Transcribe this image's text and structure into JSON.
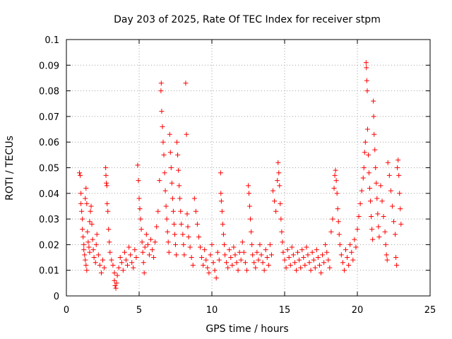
{
  "chart_data": {
    "type": "scatter",
    "title": "Day 203 of 2025, Rate Of TEC Index for receiver stpm",
    "xlabel": "GPS time / hours",
    "ylabel": "ROTI / TECUs",
    "xlim": [
      0,
      25
    ],
    "ylim": [
      0,
      0.1
    ],
    "xticks": [
      "0",
      "5",
      "10",
      "15",
      "20",
      "25"
    ],
    "yticks": [
      "0",
      "0.01",
      "0.02",
      "0.03",
      "0.04",
      "0.05",
      "0.06",
      "0.07",
      "0.08",
      "0.09",
      "0.1"
    ],
    "grid": true,
    "marker": "+",
    "color": "#ff0000",
    "series": [
      {
        "points": [
          [
            0.9,
            0.048
          ],
          [
            0.95,
            0.047
          ],
          [
            1.0,
            0.04
          ],
          [
            1.0,
            0.036
          ],
          [
            1.05,
            0.033
          ],
          [
            1.1,
            0.03
          ],
          [
            1.1,
            0.026
          ],
          [
            1.15,
            0.023
          ],
          [
            1.2,
            0.02
          ],
          [
            1.2,
            0.018
          ],
          [
            1.25,
            0.016
          ],
          [
            1.3,
            0.014
          ],
          [
            1.35,
            0.012
          ],
          [
            1.4,
            0.01
          ],
          [
            1.3,
            0.038
          ],
          [
            1.35,
            0.042
          ],
          [
            1.4,
            0.036
          ],
          [
            1.45,
            0.025
          ],
          [
            1.5,
            0.021
          ],
          [
            1.55,
            0.019
          ],
          [
            1.6,
            0.017
          ],
          [
            1.6,
            0.029
          ],
          [
            1.65,
            0.033
          ],
          [
            1.7,
            0.035
          ],
          [
            1.75,
            0.028
          ],
          [
            1.8,
            0.022
          ],
          [
            1.85,
            0.018
          ],
          [
            1.9,
            0.015
          ],
          [
            2.0,
            0.013
          ],
          [
            2.05,
            0.02
          ],
          [
            2.1,
            0.024
          ],
          [
            2.2,
            0.016
          ],
          [
            2.3,
            0.012
          ],
          [
            2.4,
            0.009
          ],
          [
            2.5,
            0.014
          ],
          [
            2.6,
            0.011
          ],
          [
            2.7,
            0.05
          ],
          [
            2.72,
            0.047
          ],
          [
            2.75,
            0.044
          ],
          [
            2.78,
            0.043
          ],
          [
            2.8,
            0.036
          ],
          [
            2.85,
            0.033
          ],
          [
            2.9,
            0.026
          ],
          [
            2.95,
            0.021
          ],
          [
            3.0,
            0.017
          ],
          [
            3.1,
            0.014
          ],
          [
            3.2,
            0.012
          ],
          [
            3.3,
            0.009
          ],
          [
            3.3,
            0.006
          ],
          [
            3.35,
            0.004
          ],
          [
            3.4,
            0.003
          ],
          [
            3.45,
            0.005
          ],
          [
            3.5,
            0.008
          ],
          [
            3.6,
            0.011
          ],
          [
            3.7,
            0.015
          ],
          [
            3.8,
            0.013
          ],
          [
            3.9,
            0.01
          ],
          [
            4.0,
            0.017
          ],
          [
            4.1,
            0.014
          ],
          [
            4.2,
            0.012
          ],
          [
            4.3,
            0.019
          ],
          [
            4.4,
            0.016
          ],
          [
            4.5,
            0.013
          ],
          [
            4.6,
            0.011
          ],
          [
            4.7,
            0.018
          ],
          [
            4.8,
            0.015
          ],
          [
            4.9,
            0.051
          ],
          [
            4.95,
            0.045
          ],
          [
            5.0,
            0.038
          ],
          [
            5.05,
            0.034
          ],
          [
            5.1,
            0.03
          ],
          [
            5.15,
            0.026
          ],
          [
            5.2,
            0.021
          ],
          [
            5.25,
            0.017
          ],
          [
            5.3,
            0.013
          ],
          [
            5.35,
            0.009
          ],
          [
            5.4,
            0.019
          ],
          [
            5.5,
            0.024
          ],
          [
            5.6,
            0.02
          ],
          [
            5.7,
            0.016
          ],
          [
            5.8,
            0.022
          ],
          [
            5.9,
            0.018
          ],
          [
            6.0,
            0.015
          ],
          [
            6.1,
            0.021
          ],
          [
            6.2,
            0.027
          ],
          [
            6.3,
            0.033
          ],
          [
            6.4,
            0.045
          ],
          [
            6.5,
            0.08
          ],
          [
            6.52,
            0.083
          ],
          [
            6.55,
            0.072
          ],
          [
            6.6,
            0.066
          ],
          [
            6.65,
            0.06
          ],
          [
            6.7,
            0.055
          ],
          [
            6.75,
            0.048
          ],
          [
            6.8,
            0.041
          ],
          [
            6.85,
            0.035
          ],
          [
            6.9,
            0.03
          ],
          [
            6.95,
            0.025
          ],
          [
            7.0,
            0.021
          ],
          [
            7.05,
            0.017
          ],
          [
            7.1,
            0.063
          ],
          [
            7.15,
            0.056
          ],
          [
            7.2,
            0.05
          ],
          [
            7.25,
            0.044
          ],
          [
            7.3,
            0.038
          ],
          [
            7.35,
            0.033
          ],
          [
            7.4,
            0.028
          ],
          [
            7.45,
            0.024
          ],
          [
            7.5,
            0.02
          ],
          [
            7.55,
            0.016
          ],
          [
            7.6,
            0.06
          ],
          [
            7.65,
            0.055
          ],
          [
            7.7,
            0.049
          ],
          [
            7.75,
            0.043
          ],
          [
            7.8,
            0.038
          ],
          [
            7.85,
            0.033
          ],
          [
            7.9,
            0.028
          ],
          [
            8.0,
            0.024
          ],
          [
            8.05,
            0.02
          ],
          [
            8.1,
            0.016
          ],
          [
            8.2,
            0.083
          ],
          [
            8.25,
            0.063
          ],
          [
            8.3,
            0.032
          ],
          [
            8.35,
            0.027
          ],
          [
            8.4,
            0.023
          ],
          [
            8.5,
            0.019
          ],
          [
            8.6,
            0.015
          ],
          [
            8.7,
            0.012
          ],
          [
            8.8,
            0.038
          ],
          [
            8.9,
            0.033
          ],
          [
            9.0,
            0.028
          ],
          [
            9.1,
            0.023
          ],
          [
            9.2,
            0.019
          ],
          [
            9.3,
            0.015
          ],
          [
            9.4,
            0.012
          ],
          [
            9.5,
            0.018
          ],
          [
            9.6,
            0.014
          ],
          [
            9.7,
            0.011
          ],
          [
            9.8,
            0.009
          ],
          [
            9.9,
            0.016
          ],
          [
            10.0,
            0.02
          ],
          [
            10.1,
            0.013
          ],
          [
            10.2,
            0.01
          ],
          [
            10.3,
            0.007
          ],
          [
            10.4,
            0.017
          ],
          [
            10.5,
            0.014
          ],
          [
            10.6,
            0.048
          ],
          [
            10.62,
            0.04
          ],
          [
            10.65,
            0.037
          ],
          [
            10.7,
            0.033
          ],
          [
            10.75,
            0.028
          ],
          [
            10.8,
            0.024
          ],
          [
            10.85,
            0.02
          ],
          [
            10.9,
            0.016
          ],
          [
            11.0,
            0.013
          ],
          [
            11.1,
            0.011
          ],
          [
            11.2,
            0.018
          ],
          [
            11.3,
            0.015
          ],
          [
            11.4,
            0.012
          ],
          [
            11.5,
            0.019
          ],
          [
            11.6,
            0.016
          ],
          [
            11.7,
            0.013
          ],
          [
            11.8,
            0.01
          ],
          [
            11.9,
            0.017
          ],
          [
            12.0,
            0.014
          ],
          [
            12.1,
            0.021
          ],
          [
            12.2,
            0.017
          ],
          [
            12.3,
            0.013
          ],
          [
            12.4,
            0.01
          ],
          [
            12.5,
            0.043
          ],
          [
            12.55,
            0.04
          ],
          [
            12.6,
            0.035
          ],
          [
            12.65,
            0.03
          ],
          [
            12.7,
            0.025
          ],
          [
            12.75,
            0.02
          ],
          [
            12.8,
            0.016
          ],
          [
            12.9,
            0.013
          ],
          [
            13.0,
            0.011
          ],
          [
            13.1,
            0.017
          ],
          [
            13.2,
            0.014
          ],
          [
            13.3,
            0.02
          ],
          [
            13.4,
            0.016
          ],
          [
            13.5,
            0.013
          ],
          [
            13.6,
            0.01
          ],
          [
            13.7,
            0.018
          ],
          [
            13.8,
            0.015
          ],
          [
            13.9,
            0.012
          ],
          [
            14.0,
            0.02
          ],
          [
            14.1,
            0.016
          ],
          [
            14.2,
            0.041
          ],
          [
            14.3,
            0.037
          ],
          [
            14.4,
            0.033
          ],
          [
            14.5,
            0.045
          ],
          [
            14.55,
            0.052
          ],
          [
            14.6,
            0.048
          ],
          [
            14.65,
            0.043
          ],
          [
            14.7,
            0.036
          ],
          [
            14.75,
            0.03
          ],
          [
            14.8,
            0.025
          ],
          [
            14.85,
            0.021
          ],
          [
            14.9,
            0.017
          ],
          [
            15.0,
            0.014
          ],
          [
            15.1,
            0.011
          ],
          [
            15.2,
            0.018
          ],
          [
            15.3,
            0.015
          ],
          [
            15.4,
            0.012
          ],
          [
            15.5,
            0.019
          ],
          [
            15.6,
            0.016
          ],
          [
            15.7,
            0.013
          ],
          [
            15.8,
            0.01
          ],
          [
            15.9,
            0.017
          ],
          [
            16.0,
            0.014
          ],
          [
            16.1,
            0.011
          ],
          [
            16.2,
            0.018
          ],
          [
            16.3,
            0.015
          ],
          [
            16.4,
            0.012
          ],
          [
            16.5,
            0.019
          ],
          [
            16.6,
            0.016
          ],
          [
            16.7,
            0.013
          ],
          [
            16.8,
            0.01
          ],
          [
            16.9,
            0.017
          ],
          [
            17.0,
            0.014
          ],
          [
            17.1,
            0.011
          ],
          [
            17.2,
            0.018
          ],
          [
            17.3,
            0.015
          ],
          [
            17.4,
            0.012
          ],
          [
            17.5,
            0.009
          ],
          [
            17.6,
            0.016
          ],
          [
            17.7,
            0.013
          ],
          [
            17.8,
            0.02
          ],
          [
            17.9,
            0.017
          ],
          [
            18.0,
            0.014
          ],
          [
            18.1,
            0.011
          ],
          [
            18.2,
            0.025
          ],
          [
            18.3,
            0.03
          ],
          [
            18.4,
            0.042
          ],
          [
            18.45,
            0.047
          ],
          [
            18.5,
            0.049
          ],
          [
            18.55,
            0.045
          ],
          [
            18.6,
            0.04
          ],
          [
            18.65,
            0.034
          ],
          [
            18.7,
            0.029
          ],
          [
            18.75,
            0.024
          ],
          [
            18.8,
            0.02
          ],
          [
            18.9,
            0.016
          ],
          [
            19.0,
            0.013
          ],
          [
            19.1,
            0.01
          ],
          [
            19.2,
            0.018
          ],
          [
            19.3,
            0.015
          ],
          [
            19.4,
            0.012
          ],
          [
            19.5,
            0.02
          ],
          [
            19.6,
            0.017
          ],
          [
            19.7,
            0.014
          ],
          [
            19.8,
            0.022
          ],
          [
            19.9,
            0.019
          ],
          [
            20.0,
            0.026
          ],
          [
            20.1,
            0.031
          ],
          [
            20.2,
            0.036
          ],
          [
            20.3,
            0.041
          ],
          [
            20.4,
            0.046
          ],
          [
            20.45,
            0.05
          ],
          [
            20.5,
            0.056
          ],
          [
            20.55,
            0.06
          ],
          [
            20.6,
            0.091
          ],
          [
            20.62,
            0.089
          ],
          [
            20.65,
            0.084
          ],
          [
            20.68,
            0.08
          ],
          [
            20.7,
            0.065
          ],
          [
            20.75,
            0.055
          ],
          [
            20.8,
            0.048
          ],
          [
            20.85,
            0.042
          ],
          [
            20.9,
            0.037
          ],
          [
            20.95,
            0.031
          ],
          [
            21.0,
            0.026
          ],
          [
            21.05,
            0.022
          ],
          [
            21.1,
            0.076
          ],
          [
            21.12,
            0.07
          ],
          [
            21.15,
            0.063
          ],
          [
            21.2,
            0.057
          ],
          [
            21.25,
            0.05
          ],
          [
            21.3,
            0.044
          ],
          [
            21.35,
            0.038
          ],
          [
            21.4,
            0.032
          ],
          [
            21.45,
            0.027
          ],
          [
            21.5,
            0.023
          ],
          [
            21.6,
            0.043
          ],
          [
            21.7,
            0.037
          ],
          [
            21.8,
            0.031
          ],
          [
            21.9,
            0.025
          ],
          [
            21.95,
            0.02
          ],
          [
            22.0,
            0.016
          ],
          [
            22.05,
            0.014
          ],
          [
            22.1,
            0.052
          ],
          [
            22.2,
            0.047
          ],
          [
            22.3,
            0.041
          ],
          [
            22.4,
            0.035
          ],
          [
            22.5,
            0.029
          ],
          [
            22.6,
            0.024
          ],
          [
            22.65,
            0.015
          ],
          [
            22.7,
            0.012
          ],
          [
            22.75,
            0.05
          ],
          [
            22.8,
            0.053
          ],
          [
            22.85,
            0.047
          ],
          [
            22.9,
            0.04
          ],
          [
            22.95,
            0.034
          ],
          [
            23.0,
            0.028
          ]
        ]
      }
    ]
  }
}
